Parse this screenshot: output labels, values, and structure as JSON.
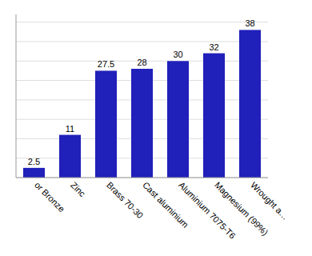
{
  "chart_data": {
    "type": "bar",
    "categories": [
      "or Bronze",
      "Zinc",
      "Brass 70-30",
      "Cast aluminium",
      "Aluminium 7075-T6",
      "Magnesium (99%)",
      "Wrought a…"
    ],
    "values": [
      2.5,
      11,
      27.5,
      28,
      30,
      32,
      38
    ],
    "color": "#2020bb",
    "ylim": [
      0,
      42
    ],
    "yticks": [
      0,
      5,
      10,
      15,
      20,
      25,
      30,
      35,
      40
    ],
    "grid": true,
    "data_labels": true,
    "tick_labels": "x"
  }
}
